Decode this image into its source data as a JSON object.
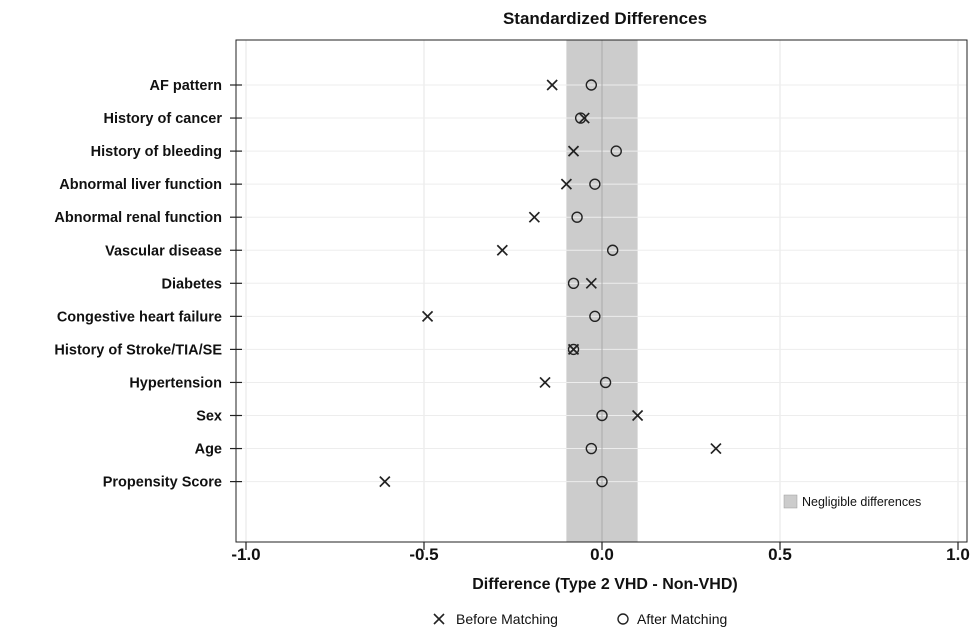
{
  "chart_data": {
    "type": "scatter",
    "title": "Standardized Differences",
    "xlabel": "Difference (Type 2 VHD - Non-VHD)",
    "ylabel": "",
    "xlim": [
      -1.0,
      1.0
    ],
    "xticks": [
      -1.0,
      -0.5,
      0.0,
      0.5,
      1.0
    ],
    "xtick_labels": [
      "-1.0",
      "-0.5",
      "0.0",
      "0.5",
      "1.0"
    ],
    "grid": true,
    "categories": [
      "AF pattern",
      "History of cancer",
      "History of bleeding",
      "Abnormal liver function",
      "Abnormal renal function",
      "Vascular disease",
      "Diabetes",
      "Congestive heart failure",
      "History of Stroke/TIA/SE",
      "Hypertension",
      "Sex",
      "Age",
      "Propensity Score"
    ],
    "series": [
      {
        "name": "Before Matching",
        "marker": "x",
        "values": [
          -0.14,
          -0.05,
          -0.08,
          -0.1,
          -0.19,
          -0.28,
          -0.03,
          -0.49,
          -0.08,
          -0.16,
          0.1,
          0.32,
          -0.61
        ]
      },
      {
        "name": "After Matching",
        "marker": "o",
        "values": [
          -0.03,
          -0.06,
          0.04,
          -0.02,
          -0.07,
          0.03,
          -0.08,
          -0.02,
          -0.08,
          0.01,
          0.0,
          -0.03,
          0.0
        ]
      }
    ],
    "band": {
      "label": "Negligible differences",
      "range": [
        -0.1,
        0.1
      ],
      "color": "#cccccc"
    },
    "legend_position": "bottom",
    "band_legend_position": "bottom-right"
  }
}
